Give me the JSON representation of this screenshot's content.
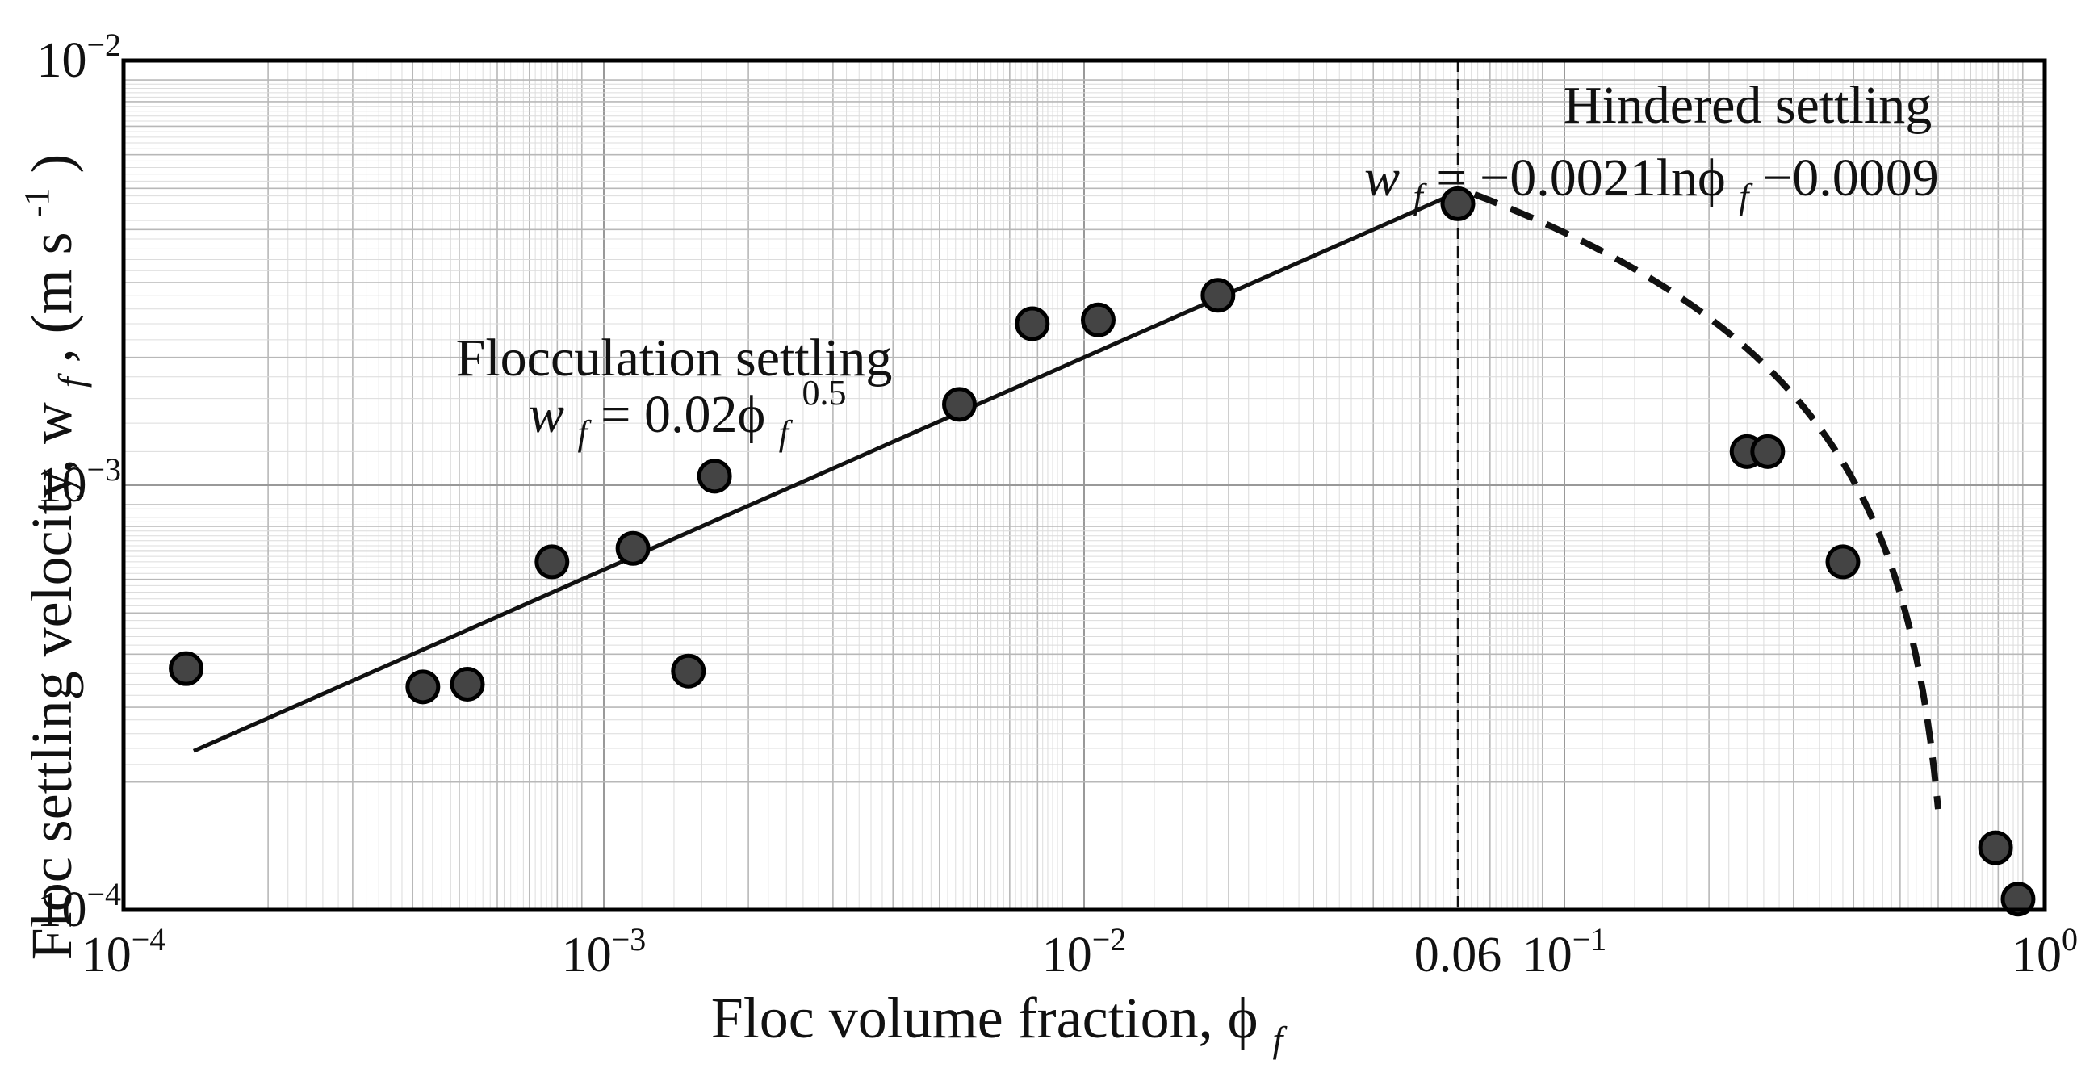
{
  "chart_data": {
    "type": "scatter",
    "x_scale": "log",
    "y_scale": "log",
    "xlim": [
      0.0001,
      1
    ],
    "ylim": [
      0.0001,
      0.01
    ],
    "grid": true,
    "xlabel": "Floc volume fraction, ϕ",
    "xlabel_sub": "f",
    "ylabel": "Floc settling velocity, w",
    "ylabel_sub": "f",
    "ylabel_units": ", (m s",
    "ylabel_units_sup": "-1",
    "ylabel_units_end": ")",
    "x_ticks": [
      {
        "value": 0.0001,
        "base": "10",
        "exp": "−4"
      },
      {
        "value": 0.001,
        "base": "10",
        "exp": "−3"
      },
      {
        "value": 0.01,
        "base": "10",
        "exp": "−2"
      },
      {
        "value": 0.06,
        "base": "0.06",
        "exp": ""
      },
      {
        "value": 0.1,
        "base": "10",
        "exp": "−1"
      },
      {
        "value": 1,
        "base": "10",
        "exp": "0"
      }
    ],
    "y_ticks": [
      {
        "value": 0.0001,
        "base": "10",
        "exp": "−4"
      },
      {
        "value": 0.001,
        "base": "10",
        "exp": "−3"
      },
      {
        "value": 0.01,
        "base": "10",
        "exp": "−2"
      }
    ],
    "points": [
      {
        "x": 0.000135,
        "y": 0.00037
      },
      {
        "x": 0.00042,
        "y": 0.000335
      },
      {
        "x": 0.00052,
        "y": 0.00034
      },
      {
        "x": 0.00078,
        "y": 0.00066
      },
      {
        "x": 0.00115,
        "y": 0.00071
      },
      {
        "x": 0.0015,
        "y": 0.000365
      },
      {
        "x": 0.0017,
        "y": 0.00105
      },
      {
        "x": 0.0055,
        "y": 0.00155
      },
      {
        "x": 0.0078,
        "y": 0.0024
      },
      {
        "x": 0.0107,
        "y": 0.00245
      },
      {
        "x": 0.019,
        "y": 0.0028
      },
      {
        "x": 0.06,
        "y": 0.0046
      },
      {
        "x": 0.24,
        "y": 0.0012
      },
      {
        "x": 0.265,
        "y": 0.0012
      },
      {
        "x": 0.38,
        "y": 0.00066
      },
      {
        "x": 0.79,
        "y": 0.00014
      },
      {
        "x": 0.88,
        "y": 0.000106
      }
    ],
    "flocculation_fit": {
      "coef": 0.02,
      "power": 0.5,
      "x_range": [
        0.00014,
        0.06
      ],
      "style": "solid"
    },
    "hindered_fit": {
      "a": -0.0021,
      "b": -0.0009,
      "x_range": [
        0.065,
        0.6
      ],
      "style": "dashed"
    },
    "vline": {
      "x": 0.06,
      "style": "dashed"
    },
    "annotations": {
      "flocculation_title": "Flocculation settling",
      "flocculation_eq_lhs": "w",
      "flocculation_eq_sub": "f",
      "flocculation_eq_mid": " = 0.02ϕ",
      "flocculation_eq_sub2": "f",
      "flocculation_eq_sup": "0.5",
      "hindered_title": "Hindered settling",
      "hindered_eq_lhs": "w",
      "hindered_eq_sub": "f",
      "hindered_eq_mid": " = −0.0021lnϕ",
      "hindered_eq_sub2": "f",
      "hindered_eq_end": "−0.0009"
    }
  }
}
